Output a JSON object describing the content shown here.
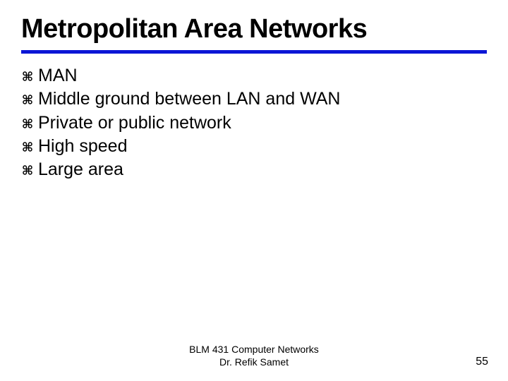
{
  "title": "Metropolitan Area Networks",
  "rule_color": "#0b16d6",
  "bullet_icon": {
    "fill": "#000000",
    "size": 18
  },
  "bullets": [
    {
      "text": "MAN"
    },
    {
      "text": "Middle ground between LAN and WAN"
    },
    {
      "text": "Private or public network"
    },
    {
      "text": "High speed"
    },
    {
      "text": "Large area"
    }
  ],
  "footer": {
    "line1": "BLM 431 Computer Networks",
    "line2": "Dr. Refik Samet"
  },
  "page_number": "55",
  "text_color": "#000000",
  "bullet_fontsize": 25,
  "title_fontsize": 38
}
